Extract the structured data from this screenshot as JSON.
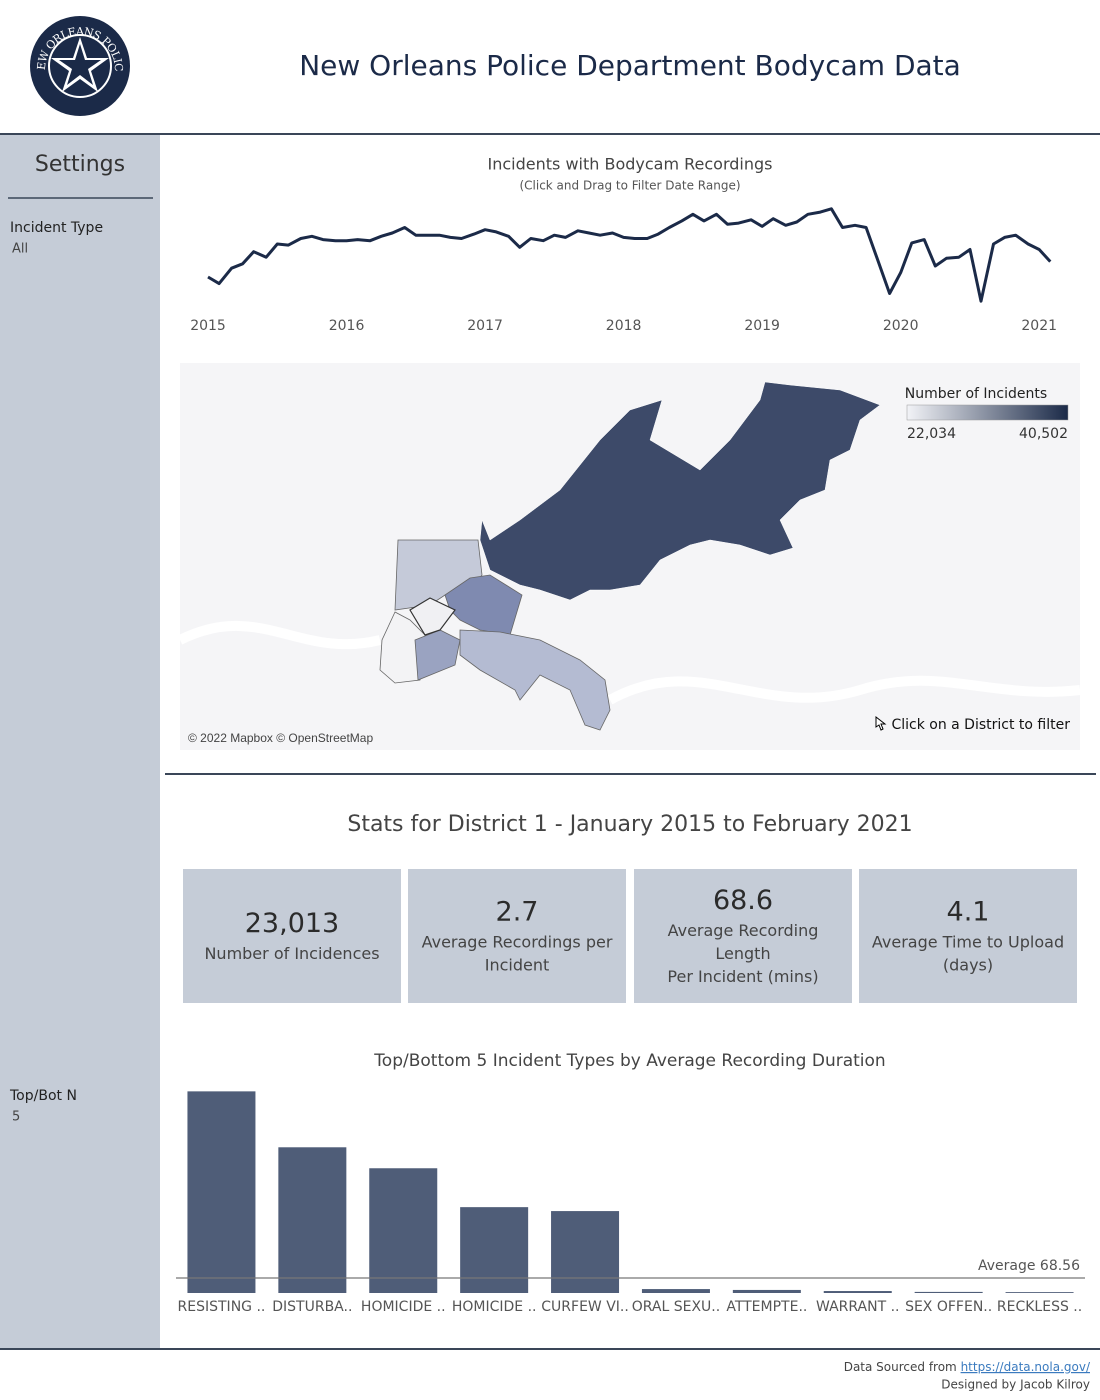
{
  "header": {
    "title": "New Orleans Police Department Bodycam Data",
    "logo_text": "NEW ORLEANS POLICE"
  },
  "sidebar": {
    "title": "Settings",
    "filters": [
      {
        "label": "Incident Type",
        "value": "All"
      },
      {
        "label": "Top/Bot N",
        "value": "5"
      }
    ]
  },
  "chart_data": [
    {
      "type": "line",
      "title": "Incidents with Bodycam Recordings",
      "subtitle": "(Click and Drag to Filter Date Range)",
      "x": [
        2015,
        2015.08,
        2015.17,
        2015.25,
        2015.33,
        2015.42,
        2015.5,
        2015.58,
        2015.67,
        2015.75,
        2015.83,
        2015.92,
        2016,
        2016.08,
        2016.17,
        2016.25,
        2016.33,
        2016.42,
        2016.5,
        2016.58,
        2016.67,
        2016.75,
        2016.83,
        2016.92,
        2017,
        2017.08,
        2017.17,
        2017.25,
        2017.33,
        2017.42,
        2017.5,
        2017.58,
        2017.67,
        2017.75,
        2017.83,
        2017.92,
        2018,
        2018.08,
        2018.17,
        2018.25,
        2018.33,
        2018.42,
        2018.5,
        2018.58,
        2018.67,
        2018.75,
        2018.83,
        2018.92,
        2019,
        2019.08,
        2019.17,
        2019.25,
        2019.33,
        2019.42,
        2019.5,
        2019.58,
        2019.67,
        2019.75,
        2019.83,
        2019.92,
        2020,
        2020.08,
        2020.17,
        2020.25,
        2020.33,
        2020.42,
        2020.5,
        2020.58,
        2020.67,
        2020.75,
        2020.83,
        2020.92,
        2021,
        2021.08
      ],
      "series": [
        {
          "name": "Incidents",
          "color": "#1b2a48",
          "values": [
            30,
            24,
            38,
            42,
            53,
            48,
            60,
            59,
            65,
            67,
            64,
            63,
            63,
            64,
            63,
            67,
            70,
            75,
            68,
            68,
            68,
            66,
            65,
            69,
            73,
            71,
            67,
            57,
            65,
            63,
            68,
            66,
            72,
            70,
            68,
            70,
            66,
            65,
            65,
            69,
            75,
            81,
            87,
            81,
            87,
            78,
            79,
            82,
            76,
            83,
            77,
            80,
            87,
            89,
            92,
            75,
            77,
            75,
            47,
            15,
            34,
            61,
            64,
            40,
            47,
            48,
            55,
            8,
            60,
            66,
            68,
            60,
            55,
            44
          ]
        }
      ],
      "xlim": [
        2014.87,
        2021.15
      ],
      "xticks": [
        2015,
        2016,
        2017,
        2018,
        2019,
        2020,
        2021
      ],
      "ylim": [
        0,
        100
      ]
    },
    {
      "type": "bar",
      "title": "Top/Bottom 5 Incident Types by Average Recording Duration",
      "categories": [
        "RESISTING ..",
        "DISTURBA..",
        "HOMICIDE ..",
        "HOMICIDE ..",
        "CURFEW VI..",
        "ORAL SEXU..",
        "ATTEMPTE..",
        "WARRANT ..",
        "SEX OFFEN..",
        "RECKLESS .."
      ],
      "values": [
        923,
        667,
        571,
        393,
        375,
        18,
        14,
        9,
        5,
        4
      ],
      "color": "#4f5d78",
      "ylim": [
        0,
        975
      ],
      "reference_line": {
        "label": "Average",
        "value": 68.56
      }
    }
  ],
  "map": {
    "legend_title": "Number of Incidents",
    "legend_min": {
      "value": 22034,
      "label": "22,034"
    },
    "legend_max": {
      "value": 40502,
      "label": "40,502"
    },
    "legend_colors": [
      "#f2f3f7",
      "#1b2a48"
    ],
    "attribution": "© 2022 Mapbox © OpenStreetMap",
    "hint": "Click on a District to filter"
  },
  "stats": {
    "title": "Stats for District 1 - January 2015 to February 2021",
    "cards": [
      {
        "value": "23,013",
        "lines": [
          "Number of Incidences"
        ]
      },
      {
        "value": "2.7",
        "lines": [
          "Average Recordings per",
          "Incident"
        ]
      },
      {
        "value": "68.6",
        "lines": [
          "Average Recording",
          "Length",
          "Per Incident (mins)"
        ]
      },
      {
        "value": "4.1",
        "lines": [
          "Average Time to Upload",
          "(days)"
        ]
      }
    ]
  },
  "footer": {
    "source_prefix": "Data Sourced from",
    "source_link": "https://data.nola.gov/",
    "credit": "Designed by Jacob Kilroy"
  }
}
